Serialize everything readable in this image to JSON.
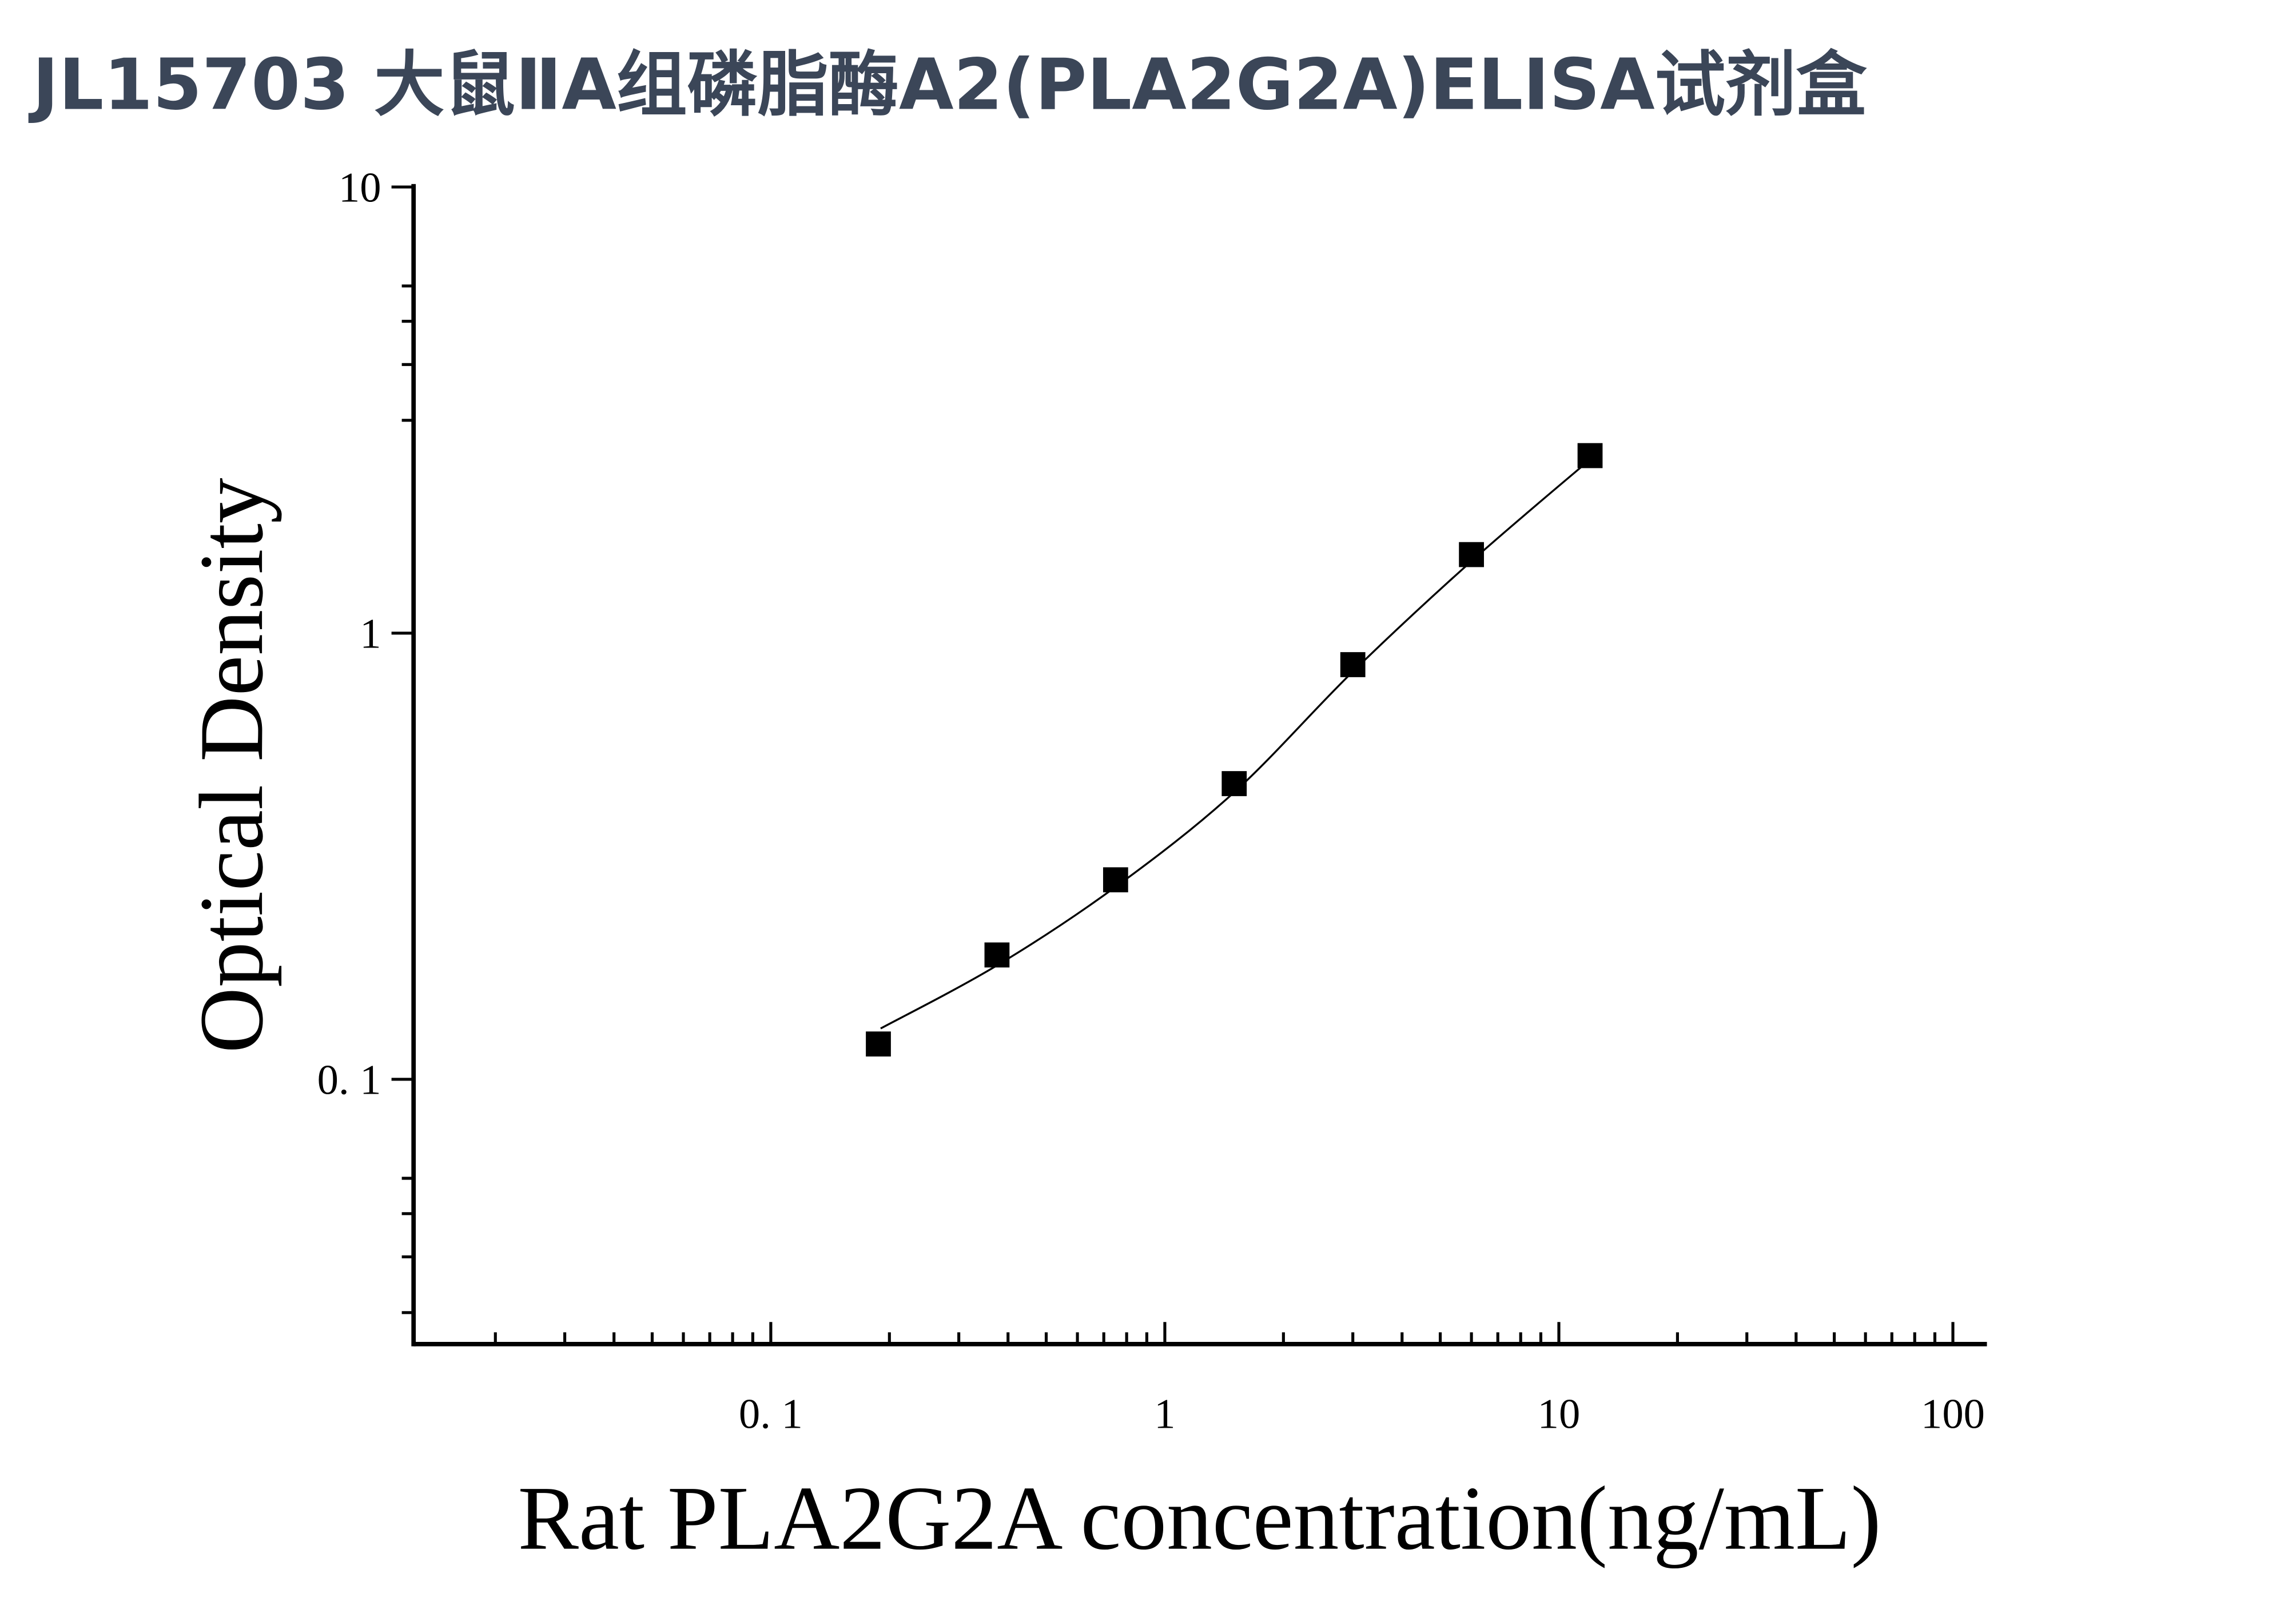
{
  "chart_data": {
    "type": "scatter",
    "title": "JL15703 大鼠ⅡA组磷脂酶A2(PLA2G2A)ELISA试剂盒",
    "x_label": "Rat PLA2G2A concentration(ng/mL)",
    "y_label": "Optical Density",
    "x": [
      0.1875,
      0.375,
      0.75,
      1.5,
      3,
      6,
      12
    ],
    "values": [
      0.12,
      0.19,
      0.28,
      0.46,
      0.85,
      1.5,
      2.5
    ],
    "color": "#000000",
    "curve": {
      "x": [
        0.19,
        0.375,
        0.75,
        1.5,
        3,
        6,
        12
      ],
      "values": [
        0.13,
        0.18,
        0.27,
        0.44,
        0.82,
        1.45,
        2.45
      ],
      "color": "#000000"
    },
    "xscale": "log",
    "yscale": "log",
    "xlim": [
      0.0124,
      122
    ],
    "ylim": [
      0.0255,
      10
    ],
    "xticks": [
      {
        "value": 0.1,
        "label": "0. 1"
      },
      1,
      10,
      100
    ],
    "yticks": [
      {
        "value": 0.1,
        "label": "0. 1"
      },
      1,
      10
    ],
    "xminorticks": [
      0.02,
      0.03,
      0.04,
      0.05,
      0.06,
      0.07,
      0.08,
      0.09,
      0.2,
      0.3,
      0.4,
      0.5,
      0.6,
      0.7,
      0.8,
      0.9,
      2,
      3,
      4,
      5,
      6,
      7,
      8,
      9,
      20,
      30,
      40,
      50,
      60,
      70,
      80,
      90
    ],
    "yminorticks": [
      0.03,
      0.04,
      0.05,
      0.06,
      3,
      4,
      5,
      6
    ],
    "grid": false
  }
}
